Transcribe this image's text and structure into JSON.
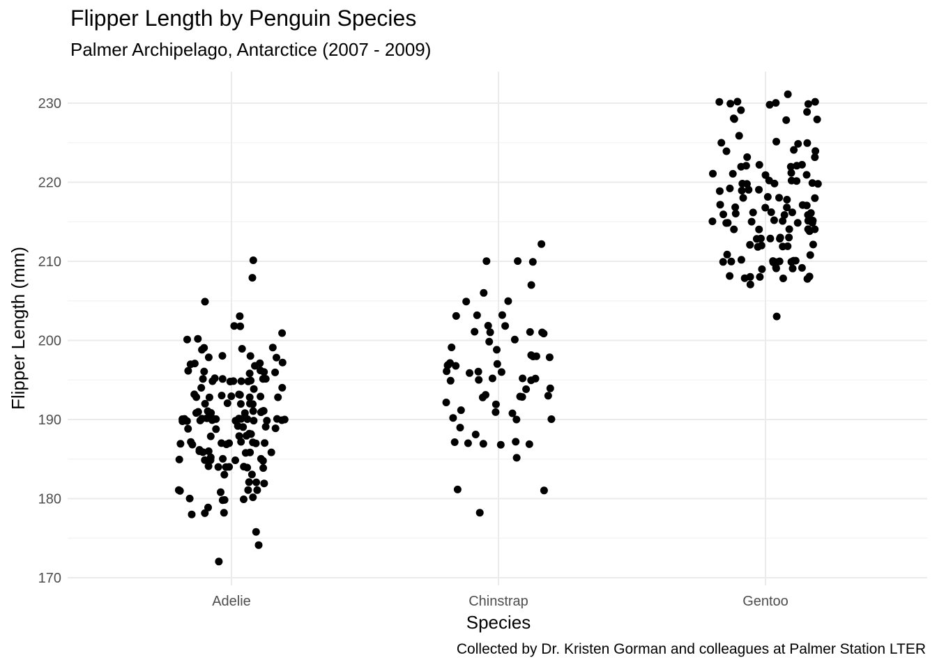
{
  "chart_data": {
    "type": "scatter",
    "title": "Flipper Length by Penguin Species",
    "subtitle": "Palmer Archipelago, Antarctice (2007 - 2009)",
    "caption": "Collected by Dr. Kristen Gorman and colleagues at Palmer Station LTER",
    "xlabel": "Species",
    "ylabel": "Flipper Length (mm)",
    "categories": [
      "Adelie",
      "Chinstrap",
      "Gentoo"
    ],
    "ylim": [
      170,
      232
    ],
    "yticks": [
      "170",
      "180",
      "190",
      "200",
      "210",
      "220",
      "230"
    ],
    "grid": true,
    "point_color": "#000000",
    "series": [
      {
        "values": [
          181,
          186,
          195,
          193,
          190,
          181,
          195,
          193,
          190,
          186,
          180,
          182,
          191,
          198,
          185,
          195,
          197,
          184,
          194,
          174,
          180,
          189,
          185,
          180,
          187,
          183,
          187,
          172,
          180,
          178,
          178,
          188,
          184,
          195,
          196,
          190,
          180,
          181,
          184,
          182,
          195,
          186,
          196,
          185,
          190,
          182,
          179,
          190,
          191,
          186,
          188,
          190,
          200,
          187,
          191,
          186,
          193,
          181,
          194,
          185,
          195,
          185,
          192,
          184,
          192,
          195,
          188,
          190,
          198,
          190,
          190,
          196,
          197,
          190,
          195,
          191,
          184,
          187,
          195,
          189,
          196,
          187,
          193,
          191,
          194,
          190,
          189,
          189,
          190,
          202,
          205,
          185,
          186,
          187,
          208,
          190,
          196,
          178,
          192,
          192,
          203,
          183,
          190,
          193,
          184,
          199,
          190,
          181,
          197,
          198,
          191,
          193,
          197,
          191,
          196,
          188,
          199,
          189,
          189,
          187,
          198,
          176,
          202,
          186,
          199,
          191,
          195,
          191,
          210,
          190,
          197,
          193,
          199,
          187,
          190,
          191,
          200,
          185,
          193,
          193,
          187,
          188,
          190,
          192,
          185,
          190,
          184,
          195,
          193,
          187,
          201
        ]
      },
      {
        "values": [
          192,
          196,
          193,
          188,
          197,
          198,
          178,
          197,
          195,
          198,
          193,
          194,
          185,
          201,
          190,
          201,
          197,
          181,
          190,
          195,
          181,
          191,
          187,
          193,
          195,
          197,
          200,
          200,
          191,
          205,
          187,
          201,
          187,
          203,
          195,
          199,
          195,
          210,
          192,
          205,
          210,
          187,
          196,
          196,
          196,
          201,
          190,
          212,
          187,
          198,
          199,
          201,
          193,
          203,
          187,
          197,
          191,
          203,
          202,
          194,
          206,
          189,
          195,
          207,
          202,
          193,
          210,
          198
        ]
      },
      {
        "values": [
          211,
          230,
          210,
          218,
          215,
          210,
          211,
          219,
          209,
          215,
          214,
          216,
          214,
          213,
          210,
          217,
          210,
          221,
          209,
          222,
          218,
          215,
          213,
          215,
          215,
          215,
          216,
          215,
          210,
          220,
          222,
          209,
          207,
          230,
          220,
          220,
          213,
          219,
          208,
          208,
          208,
          225,
          210,
          216,
          222,
          217,
          210,
          225,
          213,
          215,
          210,
          220,
          210,
          225,
          217,
          220,
          208,
          220,
          208,
          224,
          208,
          221,
          214,
          231,
          219,
          230,
          214,
          229,
          220,
          223,
          216,
          221,
          221,
          217,
          216,
          230,
          209,
          220,
          215,
          223,
          212,
          221,
          212,
          224,
          212,
          228,
          218,
          218,
          212,
          230,
          218,
          228,
          212,
          224,
          214,
          226,
          216,
          222,
          203,
          225,
          219,
          228,
          215,
          228,
          216,
          215,
          210,
          219,
          208,
          209,
          216,
          229,
          213,
          230,
          217,
          230,
          217,
          222,
          214,
          215,
          222,
          212,
          213
        ]
      }
    ]
  }
}
